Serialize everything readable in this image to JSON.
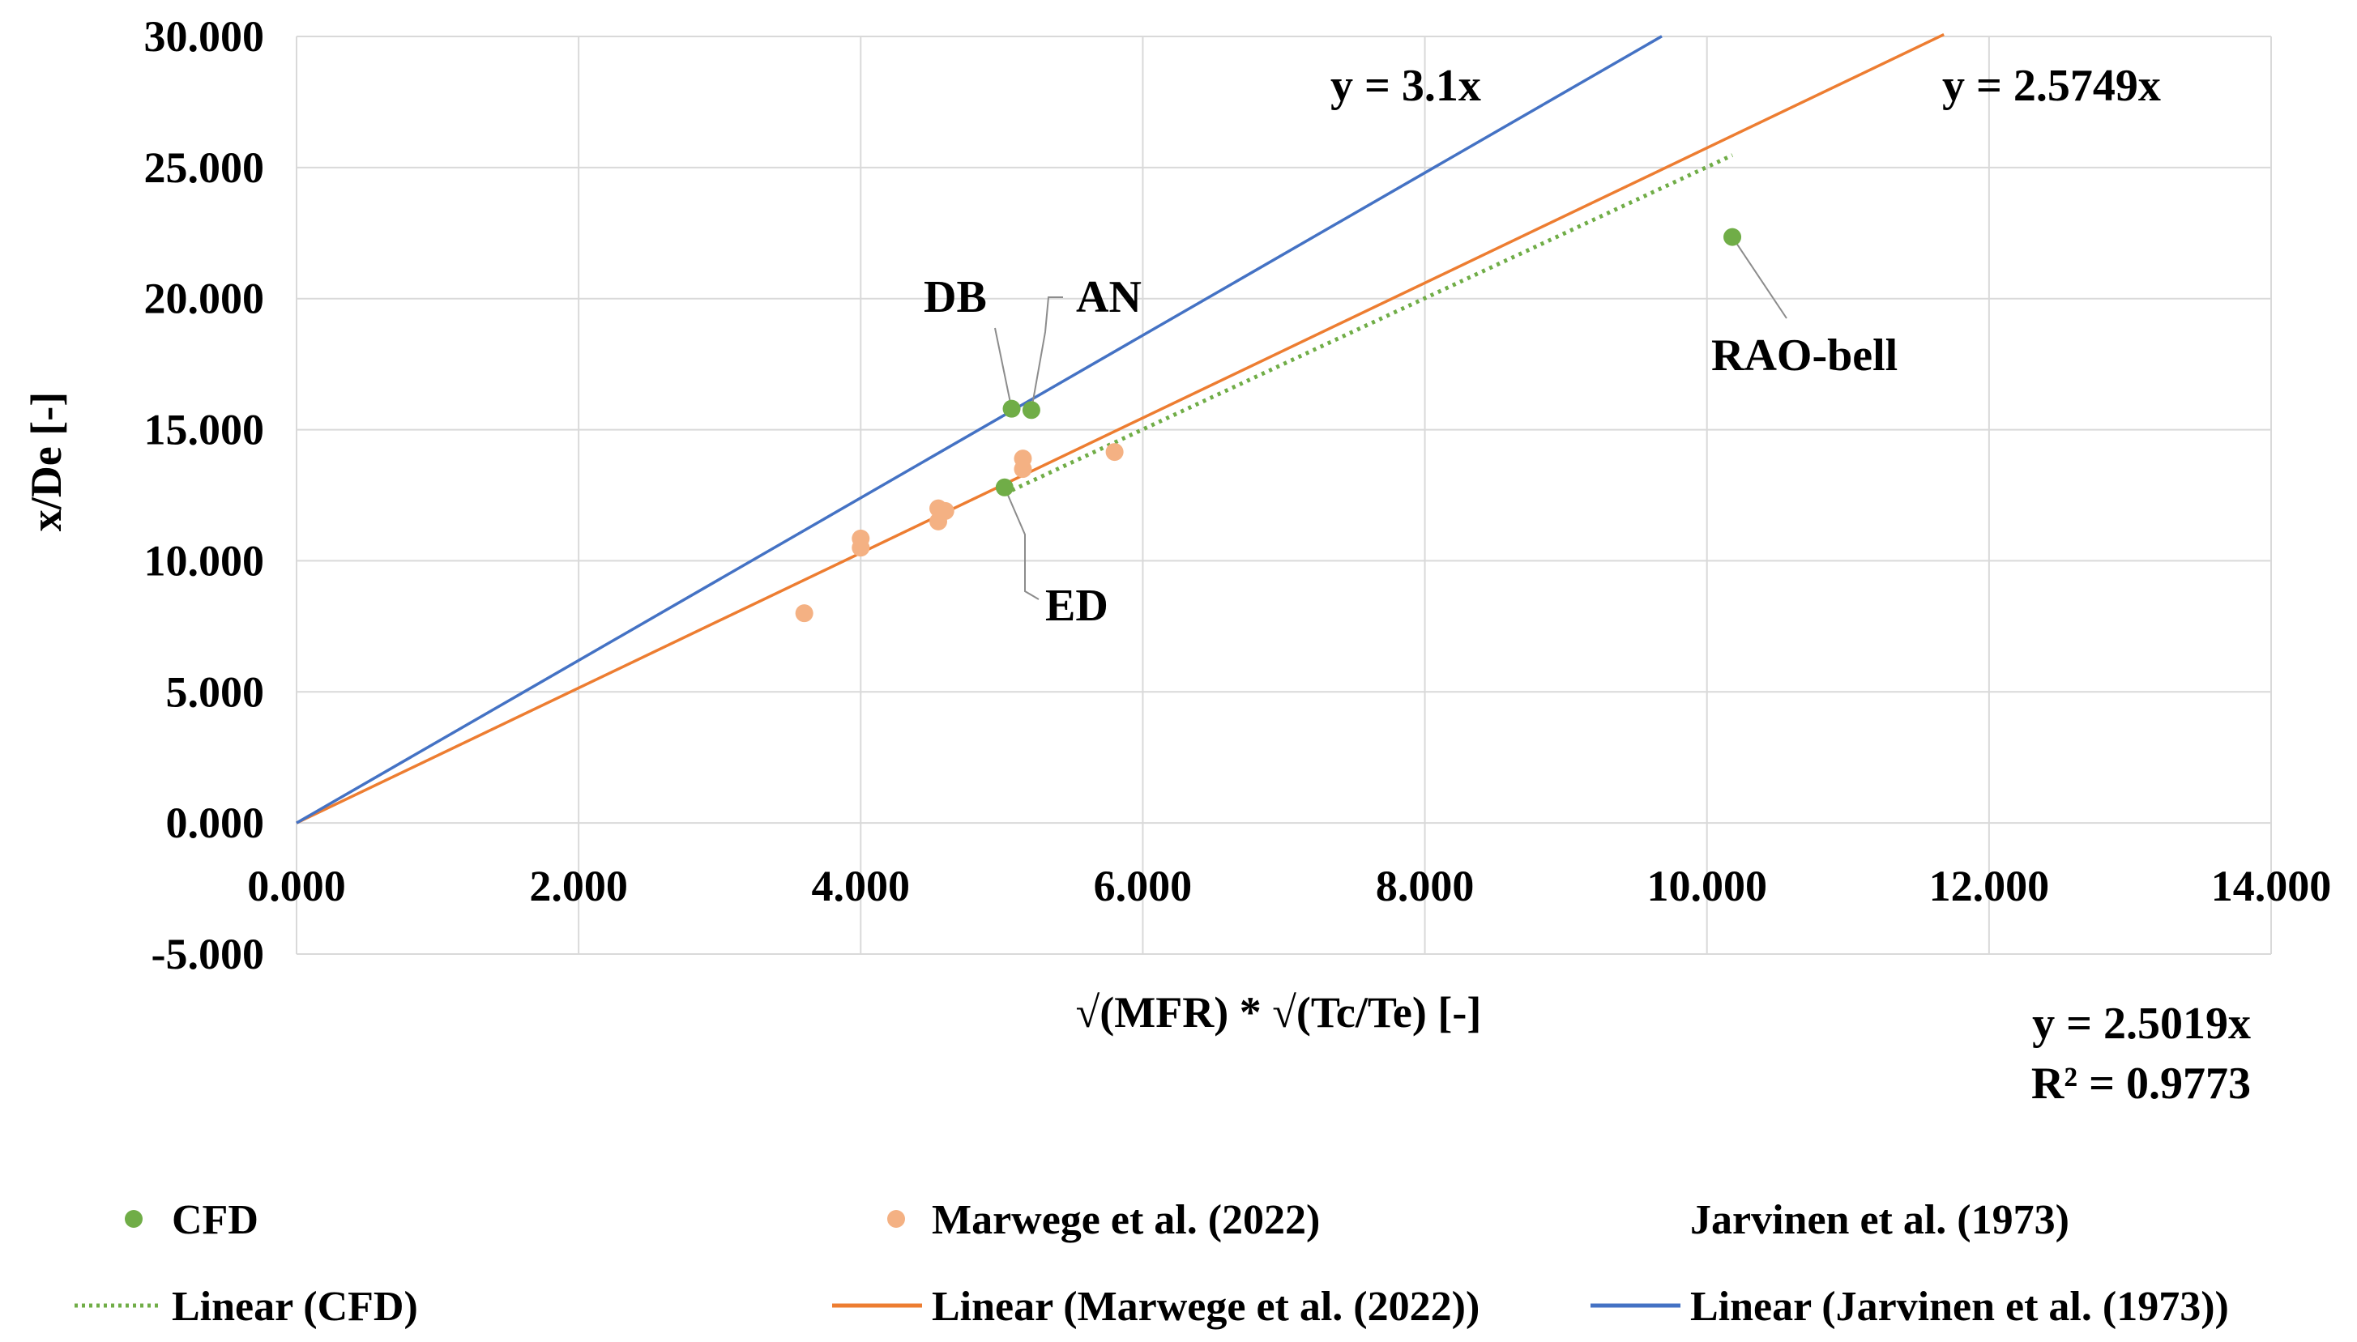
{
  "colors": {
    "cfd": "#70ad47",
    "marwege_points": "#f4b183",
    "marwege_line": "#ed7d31",
    "jarvinen_line": "#4472c4",
    "grid": "#d9d9d9",
    "leader": "#8c8c8c"
  },
  "chart_data": {
    "type": "scatter",
    "title": "",
    "xlabel": "√(MFR) * √(Tc/Te) [-]",
    "ylabel": "x/De [-]",
    "xlim": [
      0,
      14
    ],
    "ylim": [
      -5,
      30
    ],
    "x_ticks": [
      0,
      2,
      4,
      6,
      8,
      10,
      12,
      14
    ],
    "x_tick_labels": [
      "0.000",
      "2.000",
      "4.000",
      "6.000",
      "8.000",
      "10.000",
      "12.000",
      "14.000"
    ],
    "y_ticks": [
      30,
      25,
      20,
      15,
      10,
      5,
      0,
      -5
    ],
    "y_tick_labels": [
      "30.000",
      "25.000",
      "20.000",
      "15.000",
      "10.000",
      "5.000",
      "0.000",
      "-5.000"
    ],
    "grid": true,
    "series": [
      {
        "name": "CFD",
        "kind": "points",
        "points": [
          {
            "x": 5.07,
            "y": 15.8,
            "label": "DB"
          },
          {
            "x": 5.21,
            "y": 15.75,
            "label": "AN"
          },
          {
            "x": 5.02,
            "y": 12.8,
            "label": "ED"
          },
          {
            "x": 10.18,
            "y": 22.35,
            "label": "RAO-bell"
          }
        ]
      },
      {
        "name": "Marwege et al. (2022)",
        "kind": "points",
        "points": [
          {
            "x": 3.6,
            "y": 8.0
          },
          {
            "x": 4.0,
            "y": 10.5
          },
          {
            "x": 4.0,
            "y": 10.85
          },
          {
            "x": 4.55,
            "y": 11.5
          },
          {
            "x": 4.55,
            "y": 12.0
          },
          {
            "x": 4.6,
            "y": 11.9
          },
          {
            "x": 5.15,
            "y": 13.5
          },
          {
            "x": 5.15,
            "y": 13.9
          },
          {
            "x": 5.8,
            "y": 14.15
          }
        ]
      },
      {
        "name": "Jarvinen et al. (1973)",
        "kind": "points",
        "points": []
      },
      {
        "name": "Linear (CFD)",
        "kind": "trendline",
        "slope": 2.5019,
        "x_range": [
          5.02,
          10.18
        ]
      },
      {
        "name": "Linear (Marwege et al. (2022))",
        "kind": "trendline",
        "slope": 2.5749,
        "x_range": [
          0,
          11.68
        ]
      },
      {
        "name": "Linear (Jarvinen et al. (1973))",
        "kind": "trendline",
        "slope": 3.1,
        "x_range": [
          0,
          9.68
        ]
      }
    ],
    "annotations": {
      "jarvinen_eq": "y = 3.1x",
      "marwege_eq": "y = 2.5749x",
      "cfd_eq": "y = 2.5019x",
      "cfd_r2": "R² = 0.9773"
    },
    "legend": {
      "position": "bottom",
      "items": [
        {
          "label": "CFD",
          "kind": "marker"
        },
        {
          "label": "Marwege et al. (2022)",
          "kind": "marker"
        },
        {
          "label": "Jarvinen et al. (1973)",
          "kind": "none"
        },
        {
          "label": "Linear (CFD)",
          "kind": "dotted"
        },
        {
          "label": "Linear (Marwege et al. (2022))",
          "kind": "line"
        },
        {
          "label": "Linear (Jarvinen et al. (1973))",
          "kind": "line"
        }
      ]
    }
  }
}
